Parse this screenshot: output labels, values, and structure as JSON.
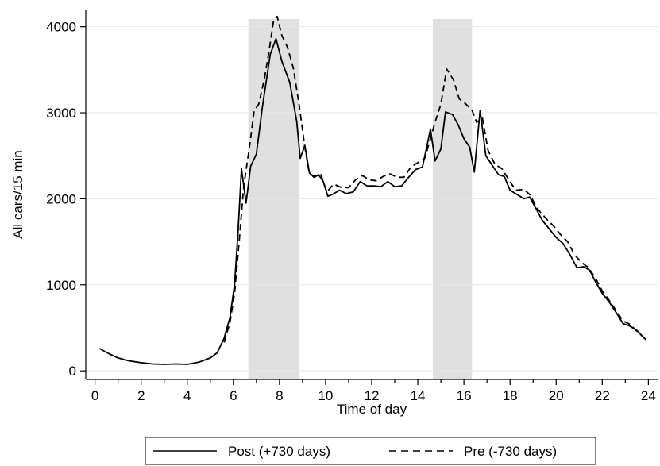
{
  "chart_data": {
    "type": "line",
    "xlabel": "Time of day",
    "ylabel": "All cars/15 min",
    "xlim": [
      -0.4,
      24.4
    ],
    "ylim": [
      -100,
      4200
    ],
    "xticks": [
      0,
      2,
      4,
      6,
      8,
      10,
      12,
      14,
      16,
      18,
      20,
      22,
      24
    ],
    "yticks": [
      0,
      1000,
      2000,
      3000,
      4000
    ],
    "grid": true,
    "legend_position": "bottom",
    "shaded_periods": [
      [
        6.65,
        8.85
      ],
      [
        14.65,
        16.35
      ]
    ],
    "colors": {
      "line": "#000000",
      "shade": "#e0e0e0",
      "grid": "#e8e8e8"
    },
    "series": [
      {
        "name": "Post (+730 days)",
        "style": "solid",
        "points": [
          [
            0.2,
            260
          ],
          [
            0.6,
            200
          ],
          [
            1,
            150
          ],
          [
            1.5,
            115
          ],
          [
            2,
            95
          ],
          [
            2.5,
            80
          ],
          [
            3,
            75
          ],
          [
            3.5,
            80
          ],
          [
            4,
            75
          ],
          [
            4.5,
            100
          ],
          [
            5,
            150
          ],
          [
            5.3,
            210
          ],
          [
            5.6,
            380
          ],
          [
            5.85,
            620
          ],
          [
            6.05,
            1000
          ],
          [
            6.2,
            1600
          ],
          [
            6.35,
            2350
          ],
          [
            6.55,
            1950
          ],
          [
            6.75,
            2380
          ],
          [
            7,
            2520
          ],
          [
            7.25,
            3050
          ],
          [
            7.6,
            3680
          ],
          [
            7.85,
            3860
          ],
          [
            8.1,
            3600
          ],
          [
            8.45,
            3350
          ],
          [
            8.75,
            2900
          ],
          [
            8.9,
            2470
          ],
          [
            9.1,
            2620
          ],
          [
            9.3,
            2300
          ],
          [
            9.5,
            2250
          ],
          [
            9.7,
            2280
          ],
          [
            9.9,
            2200
          ],
          [
            10.1,
            2030
          ],
          [
            10.3,
            2050
          ],
          [
            10.6,
            2100
          ],
          [
            10.9,
            2060
          ],
          [
            11.2,
            2080
          ],
          [
            11.5,
            2200
          ],
          [
            11.8,
            2150
          ],
          [
            12.1,
            2150
          ],
          [
            12.4,
            2140
          ],
          [
            12.7,
            2200
          ],
          [
            13,
            2140
          ],
          [
            13.3,
            2150
          ],
          [
            13.6,
            2250
          ],
          [
            13.9,
            2340
          ],
          [
            14.2,
            2370
          ],
          [
            14.4,
            2620
          ],
          [
            14.55,
            2810
          ],
          [
            14.75,
            2440
          ],
          [
            15,
            2580
          ],
          [
            15.2,
            3010
          ],
          [
            15.5,
            2980
          ],
          [
            15.75,
            2860
          ],
          [
            16,
            2700
          ],
          [
            16.25,
            2600
          ],
          [
            16.45,
            2310
          ],
          [
            16.7,
            3030
          ],
          [
            16.95,
            2500
          ],
          [
            17.2,
            2400
          ],
          [
            17.5,
            2280
          ],
          [
            17.75,
            2260
          ],
          [
            18,
            2100
          ],
          [
            18.3,
            2050
          ],
          [
            18.6,
            2000
          ],
          [
            18.85,
            2020
          ],
          [
            19.1,
            1900
          ],
          [
            19.4,
            1750
          ],
          [
            19.7,
            1650
          ],
          [
            20,
            1550
          ],
          [
            20.3,
            1480
          ],
          [
            20.6,
            1350
          ],
          [
            20.9,
            1200
          ],
          [
            21.2,
            1210
          ],
          [
            21.45,
            1170
          ],
          [
            21.7,
            1040
          ],
          [
            22,
            900
          ],
          [
            22.3,
            800
          ],
          [
            22.6,
            680
          ],
          [
            22.9,
            550
          ],
          [
            23.2,
            520
          ],
          [
            23.5,
            470
          ],
          [
            23.9,
            360
          ]
        ]
      },
      {
        "name": "Pre (-730 days)",
        "style": "dashed",
        "points": [
          [
            5.6,
            330
          ],
          [
            5.85,
            560
          ],
          [
            6.05,
            900
          ],
          [
            6.25,
            1500
          ],
          [
            6.45,
            2150
          ],
          [
            6.7,
            2600
          ],
          [
            6.9,
            3020
          ],
          [
            7.1,
            3100
          ],
          [
            7.35,
            3400
          ],
          [
            7.55,
            3720
          ],
          [
            7.75,
            4080
          ],
          [
            7.9,
            4120
          ],
          [
            8.1,
            3900
          ],
          [
            8.35,
            3760
          ],
          [
            8.6,
            3520
          ],
          [
            8.85,
            3100
          ],
          [
            9.1,
            2600
          ],
          [
            9.3,
            2290
          ],
          [
            9.55,
            2260
          ],
          [
            9.8,
            2280
          ],
          [
            10.05,
            2080
          ],
          [
            10.35,
            2170
          ],
          [
            10.7,
            2130
          ],
          [
            11,
            2130
          ],
          [
            11.3,
            2220
          ],
          [
            11.6,
            2270
          ],
          [
            11.9,
            2220
          ],
          [
            12.2,
            2210
          ],
          [
            12.5,
            2260
          ],
          [
            12.8,
            2290
          ],
          [
            13.1,
            2250
          ],
          [
            13.4,
            2250
          ],
          [
            13.7,
            2370
          ],
          [
            14,
            2420
          ],
          [
            14.3,
            2470
          ],
          [
            14.55,
            2700
          ],
          [
            14.75,
            2890
          ],
          [
            15,
            3100
          ],
          [
            15.25,
            3510
          ],
          [
            15.55,
            3380
          ],
          [
            15.8,
            3160
          ],
          [
            16.05,
            3110
          ],
          [
            16.35,
            3030
          ],
          [
            16.55,
            2890
          ],
          [
            16.8,
            2940
          ],
          [
            17.05,
            2560
          ],
          [
            17.35,
            2400
          ],
          [
            17.65,
            2350
          ],
          [
            17.95,
            2220
          ],
          [
            18.25,
            2100
          ],
          [
            18.6,
            2110
          ],
          [
            18.85,
            2050
          ],
          [
            19.2,
            1880
          ],
          [
            19.6,
            1760
          ],
          [
            19.9,
            1680
          ],
          [
            20.2,
            1580
          ],
          [
            20.5,
            1500
          ],
          [
            20.8,
            1350
          ],
          [
            21.1,
            1260
          ],
          [
            21.4,
            1200
          ],
          [
            21.7,
            1080
          ],
          [
            22,
            930
          ],
          [
            22.3,
            820
          ],
          [
            22.6,
            700
          ],
          [
            22.9,
            580
          ],
          [
            23.2,
            540
          ],
          [
            23.5,
            460
          ],
          [
            23.9,
            360
          ]
        ]
      }
    ]
  }
}
